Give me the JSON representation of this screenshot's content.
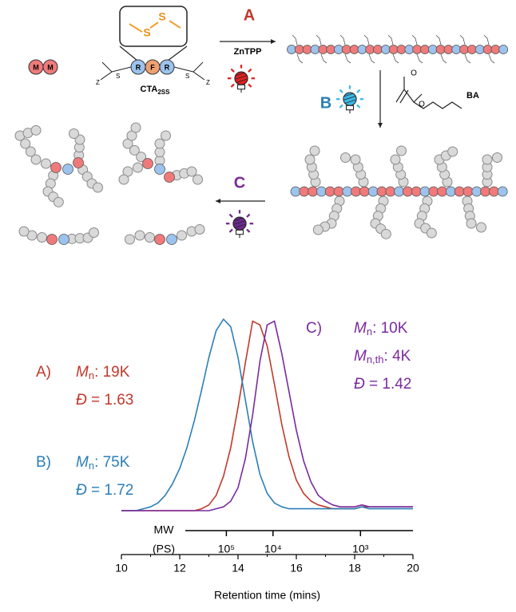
{
  "scheme": {
    "monomer": "M",
    "disulfide": "S",
    "cta_units": [
      "R",
      "F",
      "R"
    ],
    "cta_end_z": "Z",
    "cta_end_s": "S",
    "cta_label": "CTA",
    "cta_label_sub": "2SS",
    "step_a": "A",
    "catalyst": "ZnTPP",
    "step_b": "B",
    "ester_o": "O",
    "monomer_label": "BA",
    "step_c": "C"
  },
  "chart_data": {
    "type": "line",
    "x_label": "Retention time (mins)",
    "x": [
      10,
      10.25,
      10.5,
      10.75,
      11,
      11.25,
      11.5,
      11.75,
      12,
      12.25,
      12.5,
      12.75,
      13,
      13.25,
      13.5,
      13.75,
      14,
      14.25,
      14.5,
      14.75,
      15,
      15.25,
      15.5,
      15.75,
      16,
      16.25,
      16.5,
      16.75,
      17,
      17.25,
      17.5,
      17.75,
      18,
      18.25,
      18.5,
      18.75,
      19,
      19.25,
      19.5,
      19.75,
      20
    ],
    "xlim": [
      10,
      20
    ],
    "xticks": [
      10,
      12,
      14,
      16,
      18,
      20
    ],
    "xminorticks": [
      11,
      13,
      15,
      17,
      19
    ],
    "ylim": [
      0,
      1
    ],
    "series": [
      {
        "label": "A)",
        "color": "#c0392b",
        "values": [
          0,
          0,
          0,
          0,
          0,
          0,
          0,
          0,
          0,
          0,
          0,
          0.01,
          0.03,
          0.08,
          0.18,
          0.33,
          0.54,
          0.77,
          0.99,
          0.97,
          0.86,
          0.66,
          0.45,
          0.28,
          0.16,
          0.09,
          0.05,
          0.03,
          0.02,
          0.01,
          0.01,
          0.01,
          0.01,
          0.02,
          0.02,
          0.02,
          0.02,
          0.02,
          0.02,
          0.02,
          0.02
        ],
        "annotation": [
          {
            "symbol": "M",
            "sub": "n",
            "text": ": 19K"
          },
          {
            "symbol": "Đ",
            "text": " = 1.63"
          }
        ]
      },
      {
        "label": "B)",
        "color": "#2a7fb8",
        "values": [
          0,
          0,
          0,
          0.01,
          0.02,
          0.04,
          0.08,
          0.14,
          0.22,
          0.33,
          0.47,
          0.63,
          0.8,
          0.94,
          1.0,
          0.96,
          0.8,
          0.58,
          0.36,
          0.19,
          0.09,
          0.04,
          0.02,
          0.01,
          0.01,
          0.01,
          0.01,
          0.01,
          0.01,
          0.01,
          0.01,
          0.01,
          0.01,
          0.02,
          0.01,
          0.01,
          0.01,
          0.01,
          0.01,
          0.01,
          0.01
        ],
        "annotation": [
          {
            "symbol": "M",
            "sub": "n",
            "text": ": 75K"
          },
          {
            "symbol": "Đ",
            "text": " = 1.72"
          }
        ]
      },
      {
        "label": "C)",
        "color": "#7b2a9e",
        "values": [
          0,
          0,
          0,
          0,
          0,
          0,
          0,
          0,
          0,
          0,
          0,
          0,
          0,
          0.01,
          0.02,
          0.05,
          0.12,
          0.27,
          0.5,
          0.78,
          0.97,
          0.99,
          0.82,
          0.62,
          0.42,
          0.26,
          0.15,
          0.08,
          0.05,
          0.03,
          0.02,
          0.02,
          0.02,
          0.03,
          0.02,
          0.02,
          0.02,
          0.02,
          0.02,
          0.02,
          0.02
        ],
        "annotation": [
          {
            "symbol": "M",
            "sub": "n",
            "text": ": 10K"
          },
          {
            "symbol": "M",
            "sub": "n,th",
            "text": ": 4K"
          },
          {
            "symbol": "Đ",
            "text": " = 1.42"
          }
        ]
      }
    ],
    "mw_axis": {
      "label_top": "MW",
      "label_bottom": "(PS)",
      "ticks": [
        {
          "value": 13.6,
          "label": "10⁵"
        },
        {
          "value": 15.2,
          "label": "10⁴"
        },
        {
          "value": 18.2,
          "label": "10³"
        }
      ]
    }
  }
}
